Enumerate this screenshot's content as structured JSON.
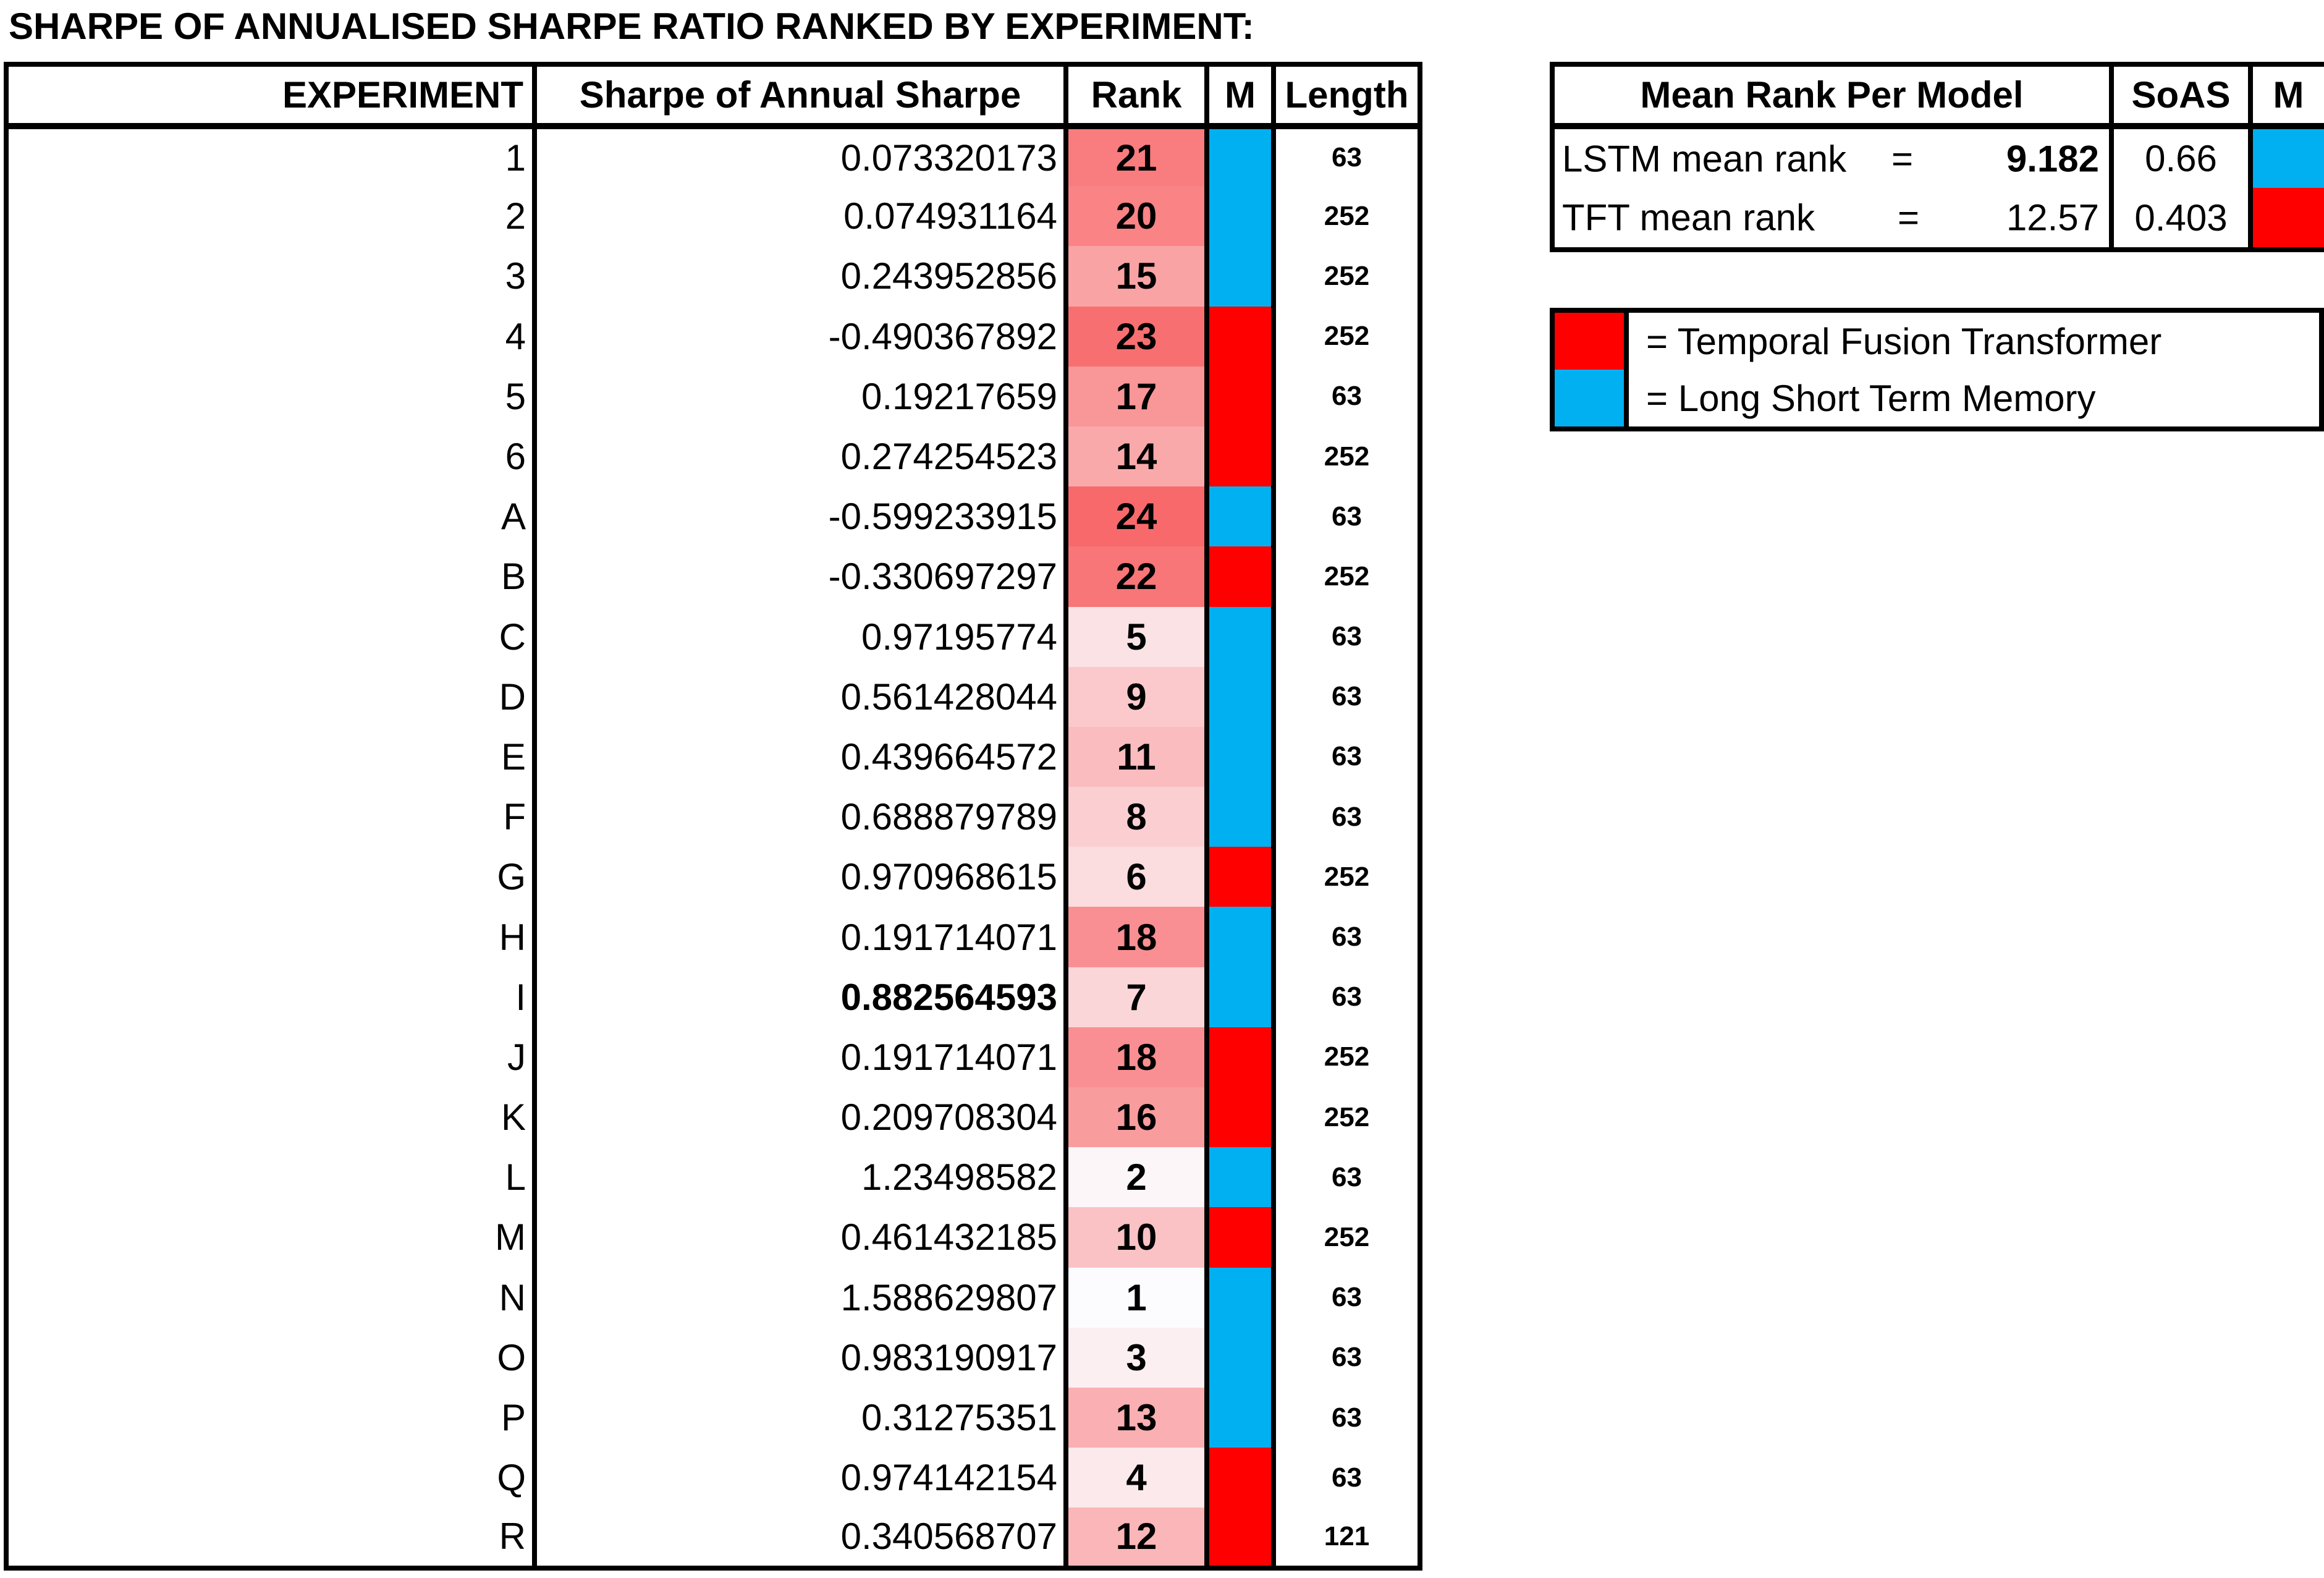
{
  "title": "SHARPE OF ANNUALISED SHARPE RATIO RANKED BY EXPERIMENT:",
  "colors": {
    "tft": "#ff0000",
    "lstm": "#00b0f0",
    "rank_high": "#f8696b",
    "rank_low": "#fcfcff"
  },
  "main_table": {
    "headers": {
      "experiment": "EXPERIMENT",
      "sharpe": "Sharpe of Annual Sharpe",
      "rank": "Rank",
      "model": "M",
      "length": "Length"
    },
    "rows": [
      {
        "experiment": "1",
        "sharpe": "0.073320173",
        "rank": "21",
        "model": "LSTM",
        "length": "63"
      },
      {
        "experiment": "2",
        "sharpe": "0.074931164",
        "rank": "20",
        "model": "LSTM",
        "length": "252"
      },
      {
        "experiment": "3",
        "sharpe": "0.243952856",
        "rank": "15",
        "model": "LSTM",
        "length": "252"
      },
      {
        "experiment": "4",
        "sharpe": "-0.490367892",
        "rank": "23",
        "model": "TFT",
        "length": "252"
      },
      {
        "experiment": "5",
        "sharpe": "0.19217659",
        "rank": "17",
        "model": "TFT",
        "length": "63"
      },
      {
        "experiment": "6",
        "sharpe": "0.274254523",
        "rank": "14",
        "model": "TFT",
        "length": "252"
      },
      {
        "experiment": "A",
        "sharpe": "-0.599233915",
        "rank": "24",
        "model": "LSTM",
        "length": "63"
      },
      {
        "experiment": "B",
        "sharpe": "-0.330697297",
        "rank": "22",
        "model": "TFT",
        "length": "252"
      },
      {
        "experiment": "C",
        "sharpe": "0.97195774",
        "rank": "5",
        "model": "LSTM",
        "length": "63"
      },
      {
        "experiment": "D",
        "sharpe": "0.561428044",
        "rank": "9",
        "model": "LSTM",
        "length": "63"
      },
      {
        "experiment": "E",
        "sharpe": "0.439664572",
        "rank": "11",
        "model": "LSTM",
        "length": "63"
      },
      {
        "experiment": "F",
        "sharpe": "0.688879789",
        "rank": "8",
        "model": "LSTM",
        "length": "63"
      },
      {
        "experiment": "G",
        "sharpe": "0.970968615",
        "rank": "6",
        "model": "TFT",
        "length": "252"
      },
      {
        "experiment": "H",
        "sharpe": "0.191714071",
        "rank": "18",
        "model": "LSTM",
        "length": "63"
      },
      {
        "experiment": "I",
        "sharpe": "0.882564593",
        "rank": "7",
        "model": "LSTM",
        "length": "63",
        "bold_sharpe": true
      },
      {
        "experiment": "J",
        "sharpe": "0.191714071",
        "rank": "18",
        "model": "TFT",
        "length": "252"
      },
      {
        "experiment": "K",
        "sharpe": "0.209708304",
        "rank": "16",
        "model": "TFT",
        "length": "252"
      },
      {
        "experiment": "L",
        "sharpe": "1.23498582",
        "rank": "2",
        "model": "LSTM",
        "length": "63"
      },
      {
        "experiment": "M",
        "sharpe": "0.461432185",
        "rank": "10",
        "model": "TFT",
        "length": "252"
      },
      {
        "experiment": "N",
        "sharpe": "1.588629807",
        "rank": "1",
        "model": "LSTM",
        "length": "63"
      },
      {
        "experiment": "O",
        "sharpe": "0.983190917",
        "rank": "3",
        "model": "LSTM",
        "length": "63"
      },
      {
        "experiment": "P",
        "sharpe": "0.31275351",
        "rank": "13",
        "model": "LSTM",
        "length": "63"
      },
      {
        "experiment": "Q",
        "sharpe": "0.974142154",
        "rank": "4",
        "model": "TFT",
        "length": "63"
      },
      {
        "experiment": "R",
        "sharpe": "0.340568707",
        "rank": "12",
        "model": "TFT",
        "length": "121"
      }
    ]
  },
  "summary_table": {
    "headers": {
      "label": "Mean Rank Per Model",
      "soas": "SoAS",
      "model": "M"
    },
    "rows": [
      {
        "name": "LSTM mean rank",
        "equals": "=",
        "value": "9.182",
        "soas": "0.66",
        "model": "LSTM",
        "bold_value": true
      },
      {
        "name": "TFT mean rank",
        "equals": "=",
        "value": "12.57",
        "soas": "0.403",
        "model": "TFT",
        "bold_value": false
      }
    ]
  },
  "legend": [
    {
      "model": "TFT",
      "text": "= Temporal Fusion Transformer"
    },
    {
      "model": "LSTM",
      "text": "= Long Short Term Memory"
    }
  ]
}
